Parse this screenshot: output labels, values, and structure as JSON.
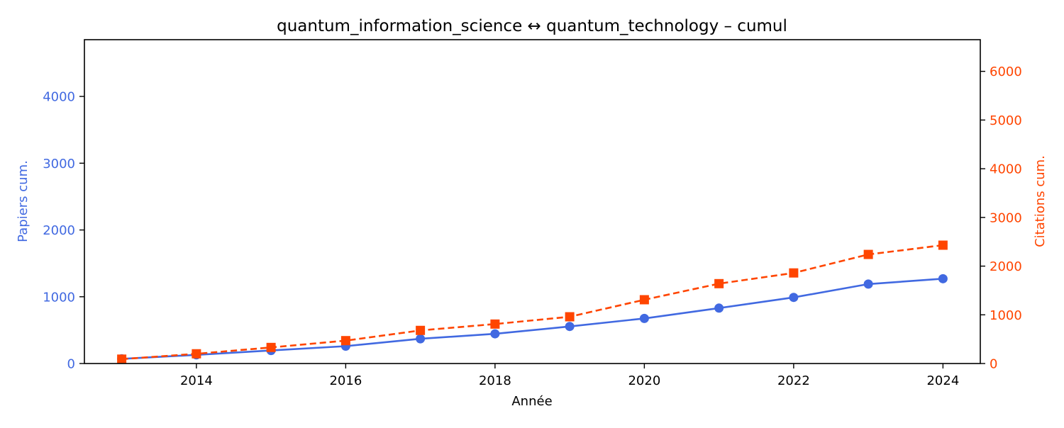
{
  "colors": {
    "papers": "#4169e1",
    "citations": "#ff4500",
    "axis": "#000000"
  },
  "chart_data": {
    "type": "line",
    "title": "quantum_information_science  ↔  quantum_technology  –  cumul",
    "xlabel": "Année",
    "ylabel_left": "Papiers cum.",
    "ylabel_right": "Citations cum.",
    "xlim": [
      2012.5,
      2024.5
    ],
    "ylim_left": [
      0,
      4850
    ],
    "ylim_right": [
      0,
      6650
    ],
    "x_ticks": [
      2014,
      2016,
      2018,
      2020,
      2022,
      2024
    ],
    "y_ticks_left": [
      0,
      1000,
      2000,
      3000,
      4000
    ],
    "y_ticks_right": [
      0,
      1000,
      2000,
      3000,
      4000,
      5000,
      6000
    ],
    "grid": false,
    "x": [
      2013,
      2014,
      2015,
      2016,
      2017,
      2018,
      2019,
      2020,
      2021,
      2022,
      2023,
      2024
    ],
    "series": [
      {
        "name": "Papiers cum.",
        "axis": "left",
        "style": "solid",
        "marker": "circle",
        "values": [
          70,
          130,
          195,
          260,
          370,
          445,
          555,
          675,
          830,
          990,
          1190,
          1270
        ]
      },
      {
        "name": "Citations cum.",
        "axis": "right",
        "style": "dashed",
        "marker": "square",
        "values": [
          90,
          200,
          330,
          470,
          680,
          810,
          960,
          1310,
          1640,
          1860,
          2240,
          2430
        ]
      }
    ]
  }
}
